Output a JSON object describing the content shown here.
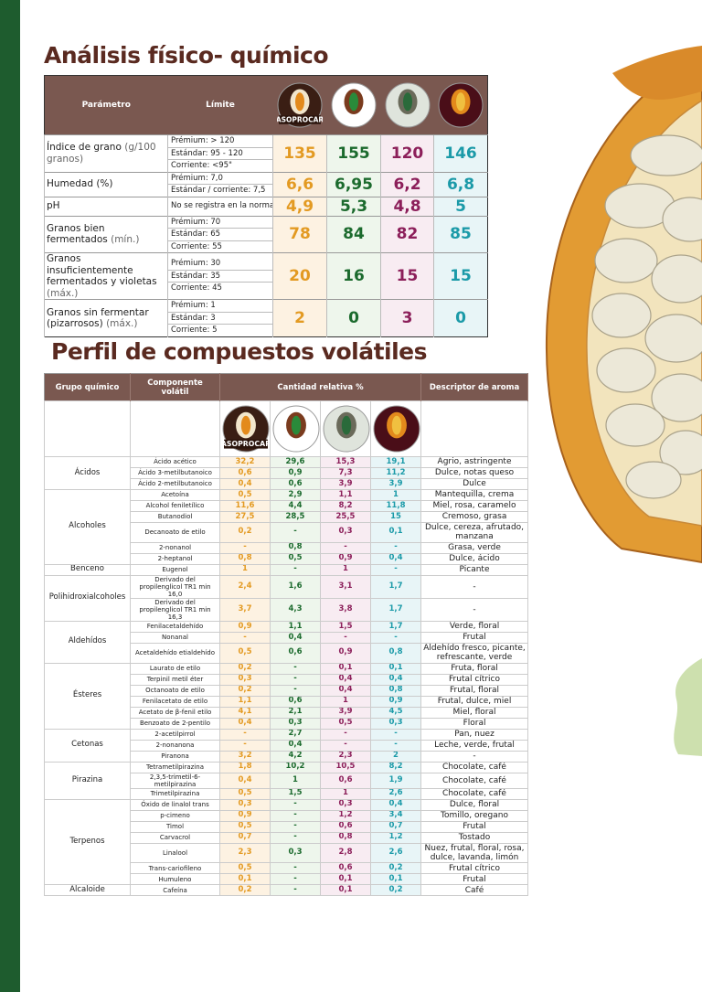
{
  "title1": "Análisis físico- químico",
  "logos": [
    "ASOPROCAR"
  ],
  "table1": {
    "headers": [
      "Parámetro",
      "Límite"
    ],
    "rows": [
      {
        "parameter": "Índice de grano",
        "note": "(g/100 granos)",
        "limits": [
          "Prémium: > 120",
          "Estándar: 95 - 120",
          "Corriente: <95\""
        ],
        "values": [
          "135",
          "155",
          "120",
          "146"
        ]
      },
      {
        "parameter": "Humedad (%)",
        "note": "",
        "limits": [
          "Prémium: 7,0",
          "Estándar / corriente: 7,5"
        ],
        "values": [
          "6,6",
          "6,95",
          "6,2",
          "6,8"
        ]
      },
      {
        "parameter": "pH",
        "note": "",
        "limits": [
          "No se registra en la norma"
        ],
        "values": [
          "4,9",
          "5,3",
          "4,8",
          "5"
        ]
      },
      {
        "parameter": "Granos bien fermentados",
        "note": "(mín.)",
        "limits": [
          "Prémium: 70",
          "Estándar: 65",
          "Corriente: 55"
        ],
        "values": [
          "78",
          "84",
          "82",
          "85"
        ]
      },
      {
        "parameter": "Granos insuficientemente fermentados y violetas",
        "note": "(máx.)",
        "limits": [
          "Prémium: 30",
          "Estándar: 35",
          "Corriente: 45"
        ],
        "values": [
          "20",
          "16",
          "15",
          "15"
        ]
      },
      {
        "parameter": "Granos sin fermentar (pizarrosos)",
        "note": "(máx.)",
        "limits": [
          "Prémium: 1",
          "Estándar: 3",
          "Corriente: 5"
        ],
        "values": [
          "2",
          "0",
          "3",
          "0"
        ]
      }
    ]
  },
  "title2": "Perfil de compuestos volátiles",
  "table2": {
    "headers": [
      "Grupo químico",
      "Componente volátil",
      "Cantidad relativa %",
      "Descriptor de aroma"
    ],
    "groups": [
      {
        "name": "Ácidos",
        "rows": [
          {
            "component": "Ácido acético",
            "values": [
              "32,2",
              "29,6",
              "15,3",
              "19,1"
            ],
            "descriptor": "Agrio, astringente"
          },
          {
            "component": "Ácido 3-metilbutanoico",
            "values": [
              "0,6",
              "0,9",
              "7,3",
              "11,2"
            ],
            "descriptor": "Dulce, notas queso"
          },
          {
            "component": "Ácido 2-metilbutanoico",
            "values": [
              "0,4",
              "0,6",
              "3,9",
              "3,9"
            ],
            "descriptor": "Dulce"
          }
        ]
      },
      {
        "name": "Alcoholes",
        "rows": [
          {
            "component": "Acetoína",
            "values": [
              "0,5",
              "2,9",
              "1,1",
              "1"
            ],
            "descriptor": "Mantequilla, crema"
          },
          {
            "component": "Alcohol feniletílico",
            "values": [
              "11,6",
              "4,4",
              "8,2",
              "11,8"
            ],
            "descriptor": "Miel, rosa, caramelo"
          },
          {
            "component": "Butanodiol",
            "values": [
              "27,5",
              "28,5",
              "25,5",
              "15"
            ],
            "descriptor": "Cremoso, grasa"
          },
          {
            "component": "Decanoato de etilo",
            "values": [
              "0,2",
              "-",
              "0,3",
              "0,1"
            ],
            "descriptor": "Dulce, cereza, afrutado, manzana"
          },
          {
            "component": "2-nonanol",
            "values": [
              "-",
              "0,8",
              "-",
              "-"
            ],
            "descriptor": "Grasa, verde"
          },
          {
            "component": "2-heptanol",
            "values": [
              "0,8",
              "0,5",
              "0,9",
              "0,4"
            ],
            "descriptor": "Dulce, ácido"
          }
        ]
      },
      {
        "name": "Benceno",
        "rows": [
          {
            "component": "Eugenol",
            "values": [
              "1",
              "-",
              "1",
              "-"
            ],
            "descriptor": "Picante"
          }
        ]
      },
      {
        "name": "Polihidroxialcoholes",
        "rows": [
          {
            "component": "Derivado del propilenglicol TR1 min 16,0",
            "values": [
              "2,4",
              "1,6",
              "3,1",
              "1,7"
            ],
            "descriptor": "-"
          },
          {
            "component": "Derivado del propilenglicol TR1 min 16,3",
            "values": [
              "3,7",
              "4,3",
              "3,8",
              "1,7"
            ],
            "descriptor": "-"
          }
        ]
      },
      {
        "name": "Aldehídos",
        "rows": [
          {
            "component": "Fenilacetaldehído",
            "values": [
              "0,9",
              "1,1",
              "1,5",
              "1,7"
            ],
            "descriptor": "Verde, floral"
          },
          {
            "component": "Nonanal",
            "values": [
              "-",
              "0,4",
              "-",
              "-"
            ],
            "descriptor": "Frutal"
          },
          {
            "component": "Acetaldehído etialdehído",
            "values": [
              "0,5",
              "0,6",
              "0,9",
              "0,8"
            ],
            "descriptor": "Aldehído fresco, picante, refrescante, verde"
          }
        ]
      },
      {
        "name": "Ésteres",
        "rows": [
          {
            "component": "Laurato de etilo",
            "values": [
              "0,2",
              "-",
              "0,1",
              "0,1"
            ],
            "descriptor": "Fruta, floral"
          },
          {
            "component": "Terpinil metil éter",
            "values": [
              "0,3",
              "-",
              "0,4",
              "0,4"
            ],
            "descriptor": "Frutal cítrico"
          },
          {
            "component": "Octanoato de etilo",
            "values": [
              "0,2",
              "-",
              "0,4",
              "0,8"
            ],
            "descriptor": "Frutal, floral"
          },
          {
            "component": "Fenilacetato de etilo",
            "values": [
              "1,1",
              "0,6",
              "1",
              "0,9"
            ],
            "descriptor": "Frutal, dulce, miel"
          },
          {
            "component": "Acetato de β-fenil etilo",
            "values": [
              "4,1",
              "2,1",
              "3,9",
              "4,5"
            ],
            "descriptor": "Miel, floral"
          },
          {
            "component": "Benzoato de 2-pentilo",
            "values": [
              "0,4",
              "0,3",
              "0,5",
              "0,3"
            ],
            "descriptor": "Floral"
          }
        ]
      },
      {
        "name": "Cetonas",
        "rows": [
          {
            "component": "2-acetilpirrol",
            "values": [
              "-",
              "2,7",
              "-",
              "-"
            ],
            "descriptor": "Pan, nuez"
          },
          {
            "component": "2-nonanona",
            "values": [
              "-",
              "0,4",
              "-",
              "-"
            ],
            "descriptor": "Leche, verde, frutal"
          },
          {
            "component": "Piranona",
            "values": [
              "3,2",
              "4,2",
              "2,3",
              "2"
            ],
            "descriptor": "-"
          }
        ]
      },
      {
        "name": "Pirazina",
        "rows": [
          {
            "component": "Tetrametilpirazina",
            "values": [
              "1,8",
              "10,2",
              "10,5",
              "8,2"
            ],
            "descriptor": "Chocolate, café"
          },
          {
            "component": "2,3,5-trimetil-6-metilpirazina",
            "values": [
              "0,4",
              "1",
              "0,6",
              "1,9"
            ],
            "descriptor": "Chocolate, café"
          },
          {
            "component": "Trimetilpirazina",
            "values": [
              "0,5",
              "1,5",
              "1",
              "2,6"
            ],
            "descriptor": "Chocolate, café"
          }
        ]
      },
      {
        "name": "Terpenos",
        "rows": [
          {
            "component": "Óxido de linalol trans",
            "values": [
              "0,3",
              "-",
              "0,3",
              "0,4"
            ],
            "descriptor": "Dulce, floral"
          },
          {
            "component": "p-cimeno",
            "values": [
              "0,9",
              "-",
              "1,2",
              "3,4"
            ],
            "descriptor": "Tomillo, oregano"
          },
          {
            "component": "Timol",
            "values": [
              "0,5",
              "-",
              "0,6",
              "0,7"
            ],
            "descriptor": "Frutal"
          },
          {
            "component": "Carvacrol",
            "values": [
              "0,7",
              "-",
              "0,8",
              "1,2"
            ],
            "descriptor": "Tostado"
          },
          {
            "component": "Linalool",
            "values": [
              "2,3",
              "0,3",
              "2,8",
              "2,6"
            ],
            "descriptor": "Nuez, frutal, floral, rosa, dulce, lavanda, limón"
          },
          {
            "component": "Trans-cariofileno",
            "values": [
              "0,5",
              "-",
              "0,6",
              "0,2"
            ],
            "descriptor": "Frutal cítrico"
          },
          {
            "component": "Humuleno",
            "values": [
              "0,1",
              "-",
              "0,1",
              "0,1"
            ],
            "descriptor": "Frutal"
          }
        ]
      },
      {
        "name": "Alcaloide",
        "rows": [
          {
            "component": "Cafeína",
            "values": [
              "0,2",
              "-",
              "0,1",
              "0,2"
            ],
            "descriptor": "Café"
          }
        ]
      }
    ]
  }
}
